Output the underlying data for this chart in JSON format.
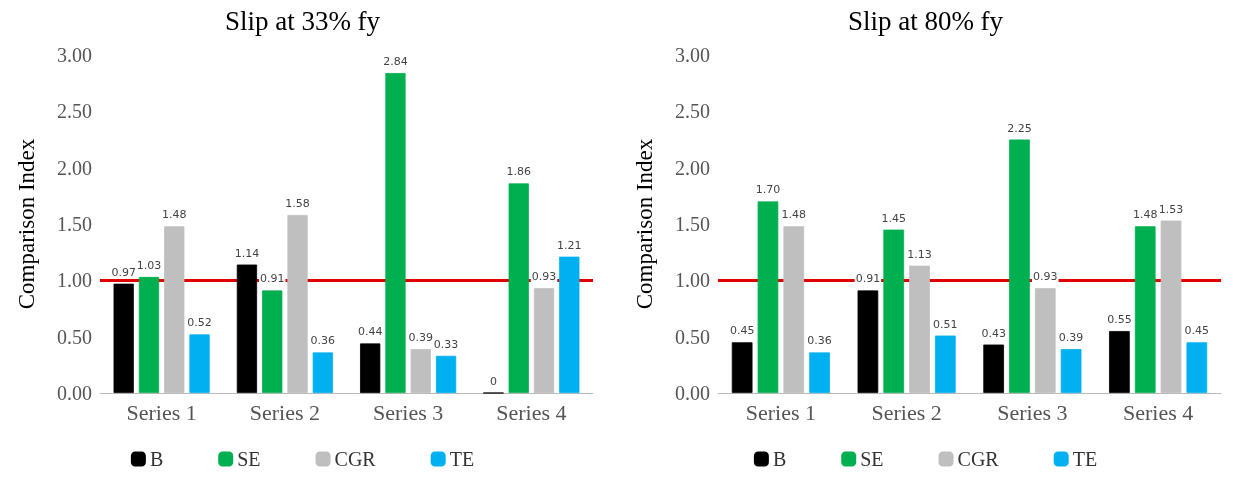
{
  "chart_data": [
    {
      "type": "bar",
      "title": "Slip at 33% fy",
      "ylabel": "Comparison Index",
      "categories": [
        "Series 1",
        "Series 2",
        "Series 3",
        "Series 4"
      ],
      "series": [
        {
          "name": "B",
          "color": "#000000",
          "values": [
            0.97,
            1.14,
            0.44,
            0
          ],
          "value_labels": [
            "0.97",
            "1.14",
            "0.44",
            "0"
          ]
        },
        {
          "name": "SE",
          "color": "#00b050",
          "values": [
            1.03,
            0.91,
            2.84,
            1.86
          ],
          "value_labels": [
            "1.03",
            "0.91",
            "2.84",
            "1.86"
          ]
        },
        {
          "name": "CGR",
          "color": "#bfbfbf",
          "values": [
            1.48,
            1.58,
            0.39,
            0.93
          ],
          "value_labels": [
            "1.48",
            "1.58",
            "0.39",
            "0.93"
          ]
        },
        {
          "name": "TE",
          "color": "#00b0f0",
          "values": [
            0.52,
            0.36,
            0.33,
            1.21
          ],
          "value_labels": [
            "0.52",
            "0.36",
            "0.33",
            "1.21"
          ]
        }
      ],
      "ylim": [
        0,
        3
      ],
      "yticks": [
        {
          "value": 0,
          "label": "0.00"
        },
        {
          "value": 0.5,
          "label": "0.50"
        },
        {
          "value": 1,
          "label": "1.00"
        },
        {
          "value": 1.5,
          "label": "1.50"
        },
        {
          "value": 2,
          "label": "2.00"
        },
        {
          "value": 2.5,
          "label": "2.50"
        },
        {
          "value": 3,
          "label": "3.00"
        }
      ],
      "ref_lines": [
        {
          "axis": "y",
          "value": 1,
          "color": "#e00000"
        }
      ],
      "grid": false,
      "legend": "bottom"
    },
    {
      "type": "bar",
      "title": "Slip at 80% fy",
      "ylabel": "Comparison Index",
      "categories": [
        "Series 1",
        "Series 2",
        "Series 3",
        "Series 4"
      ],
      "series": [
        {
          "name": "B",
          "color": "#000000",
          "values": [
            0.45,
            0.91,
            0.43,
            0.55
          ],
          "value_labels": [
            "0.45",
            "0.91",
            "0.43",
            "0.55"
          ]
        },
        {
          "name": "SE",
          "color": "#00b050",
          "values": [
            1.7,
            1.45,
            2.25,
            1.48
          ],
          "value_labels": [
            "1.70",
            "1.45",
            "2.25",
            "1.48"
          ]
        },
        {
          "name": "CGR",
          "color": "#bfbfbf",
          "values": [
            1.48,
            1.13,
            0.93,
            1.53
          ],
          "value_labels": [
            "1.48",
            "1.13",
            "0.93",
            "1.53"
          ]
        },
        {
          "name": "TE",
          "color": "#00b0f0",
          "values": [
            0.36,
            0.51,
            0.39,
            0.45
          ],
          "value_labels": [
            "0.36",
            "0.51",
            "0.39",
            "0.45"
          ]
        }
      ],
      "ylim": [
        0,
        3
      ],
      "yticks": [
        {
          "value": 0,
          "label": "0.00"
        },
        {
          "value": 0.5,
          "label": "0.50"
        },
        {
          "value": 1,
          "label": "1.00"
        },
        {
          "value": 1.5,
          "label": "1.50"
        },
        {
          "value": 2,
          "label": "2.00"
        },
        {
          "value": 2.5,
          "label": "2.50"
        },
        {
          "value": 3,
          "label": "3.00"
        }
      ],
      "ref_lines": [
        {
          "axis": "y",
          "value": 1,
          "color": "#e00000"
        }
      ],
      "grid": false,
      "legend": "bottom"
    }
  ]
}
